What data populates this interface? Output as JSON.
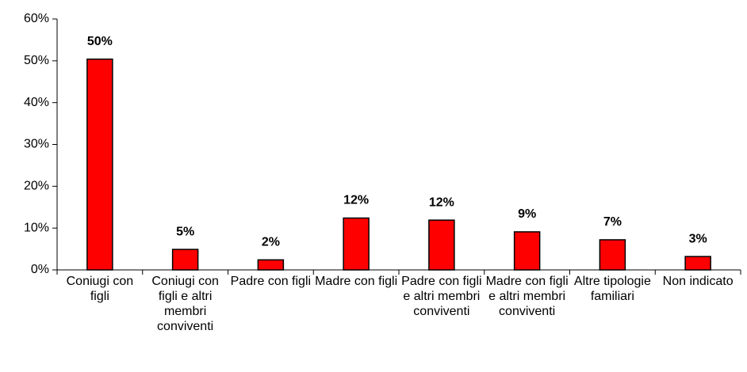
{
  "chart_data": {
    "type": "bar",
    "categories": [
      "Coniugi con figli",
      "Coniugi con figli e altri membri conviventi",
      "Padre con figli",
      "Madre con figli",
      "Padre con figli e altri membri conviventi",
      "Madre con figli e altri membri conviventi",
      "Altre tipologie familiari",
      "Non indicato"
    ],
    "values": [
      50.4,
      4.9,
      2.4,
      12.4,
      11.9,
      9.1,
      7.2,
      3.2
    ],
    "value_labels": [
      "50%",
      "5%",
      "2%",
      "12%",
      "12%",
      "9%",
      "7%",
      "3%"
    ],
    "color": "#ff0000",
    "ylim": [
      0,
      60
    ],
    "yticks": [
      {
        "value": 0,
        "label": "0%"
      },
      {
        "value": 10,
        "label": "10%"
      },
      {
        "value": 20,
        "label": "20%"
      },
      {
        "value": 30,
        "label": "30%"
      },
      {
        "value": 40,
        "label": "40%"
      },
      {
        "value": 50,
        "label": "50%"
      },
      {
        "value": 60,
        "label": "60%"
      }
    ],
    "grid": false
  }
}
